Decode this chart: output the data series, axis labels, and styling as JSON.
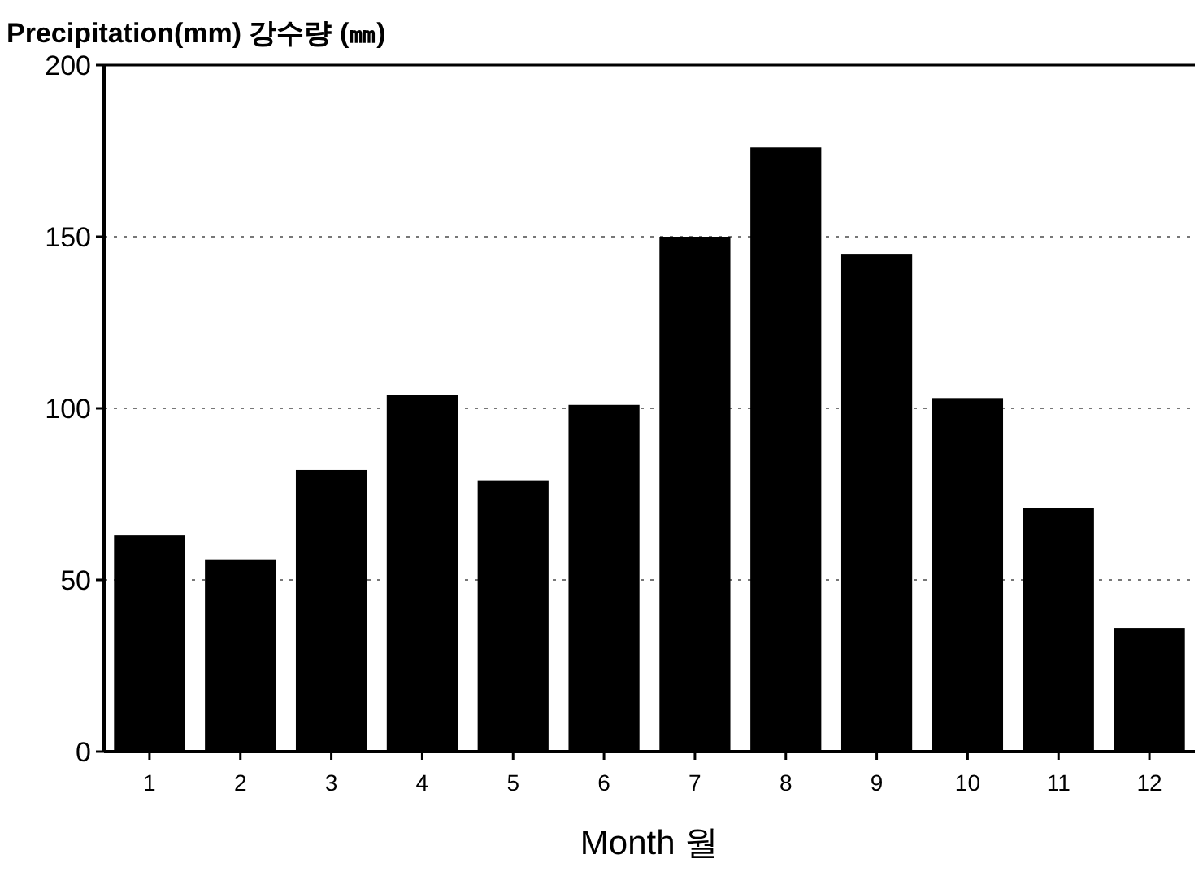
{
  "chart_data": {
    "type": "bar",
    "title": "Precipitation(mm) 강수량 (㎜)",
    "xlabel": "Month  월",
    "categories": [
      "1",
      "2",
      "3",
      "4",
      "5",
      "6",
      "7",
      "8",
      "9",
      "10",
      "11",
      "12"
    ],
    "values": [
      63,
      56,
      82,
      104,
      79,
      101,
      150,
      176,
      145,
      103,
      71,
      36
    ],
    "color": "#000000",
    "ylim": [
      0,
      200
    ],
    "yticks": [
      0,
      50,
      100,
      150,
      200
    ],
    "grid": "y"
  }
}
